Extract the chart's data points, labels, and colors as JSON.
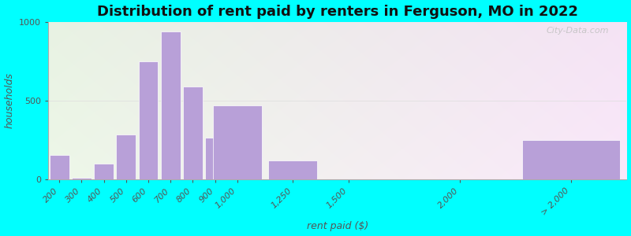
{
  "title": "Distribution of rent paid by renters in Ferguson, MO in 2022",
  "xlabel": "rent paid ($)",
  "ylabel": "households",
  "bar_color": "#b8a0d8",
  "bar_edgecolor": "#ffffff",
  "background_outer": "#00ffff",
  "ylim": [
    0,
    1000
  ],
  "yticks": [
    0,
    500,
    1000
  ],
  "categories": [
    "200",
    "300",
    "400",
    "500",
    "600",
    "700",
    "800",
    "900",
    "1,000",
    "1,250",
    "1,500",
    "2,000",
    "> 2,000"
  ],
  "x_values": [
    200,
    300,
    400,
    500,
    600,
    700,
    800,
    900,
    1000,
    1250,
    1500,
    2000,
    2500
  ],
  "bar_actual_widths": [
    100,
    100,
    100,
    100,
    100,
    100,
    100,
    100,
    250,
    250,
    500,
    500,
    500
  ],
  "values": [
    155,
    10,
    100,
    285,
    750,
    940,
    590,
    265,
    470,
    120,
    0,
    0,
    250
  ],
  "title_fontsize": 13,
  "axis_label_fontsize": 9,
  "tick_fontsize": 8,
  "watermark_text": "City-Data.com"
}
